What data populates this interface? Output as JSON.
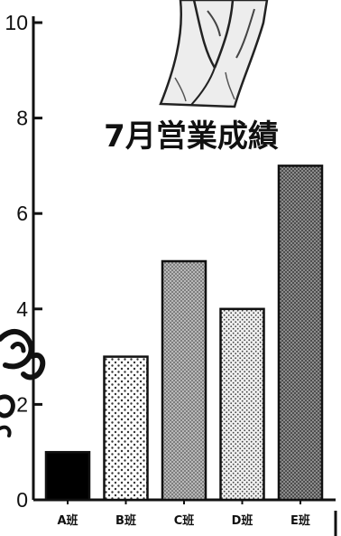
{
  "chart_data": {
    "type": "bar",
    "title": "7月営業成績",
    "categories": [
      "A班",
      "B班",
      "C班",
      "D班",
      "E班"
    ],
    "values": [
      1,
      3,
      5,
      4,
      7
    ],
    "ylim": [
      0,
      10
    ],
    "yticks": [
      "0",
      "2",
      "4",
      "6",
      "8",
      "10"
    ],
    "grid": false,
    "legend": "none",
    "bar_fills": [
      "solid-black",
      "sparse-dots",
      "dense-gray-dots",
      "fine-dots",
      "dense-dark-dots"
    ]
  }
}
